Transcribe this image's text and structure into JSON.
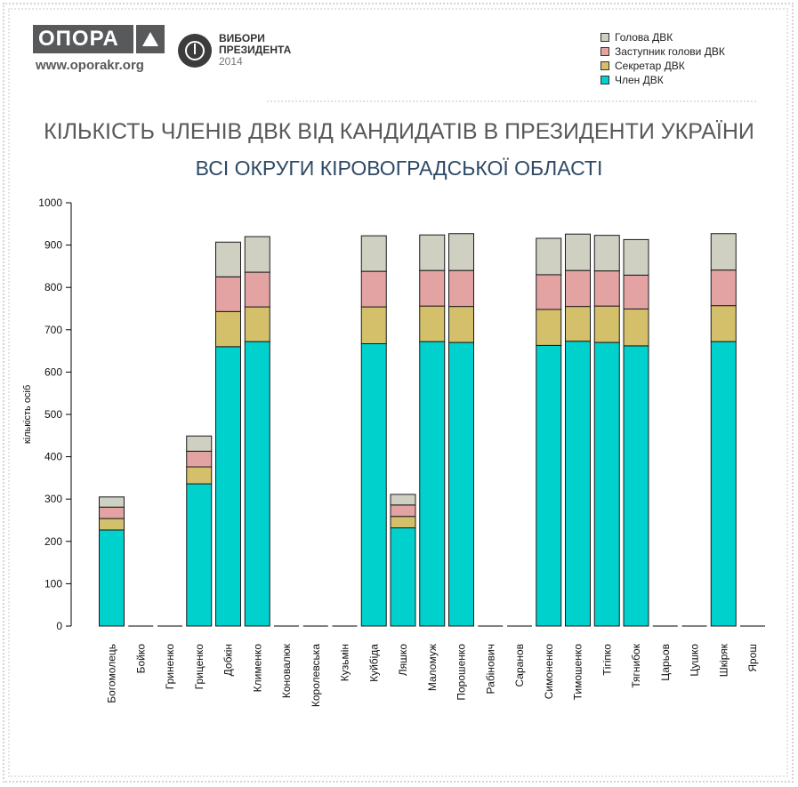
{
  "header": {
    "logo_text": "ОПОРА",
    "url": "www.oporakr.org",
    "badge": {
      "line1": "ВИБОРИ",
      "line2": "ПРЕЗИДЕНТА",
      "line3": "2014"
    }
  },
  "chart_data": {
    "type": "bar",
    "stacked": true,
    "title": "КІЛЬКІСТЬ ЧЛЕНІВ ДВК ВІД КАНДИДАТІВ В ПРЕЗИДЕНТИ УКРАЇНИ",
    "subtitle": "ВСІ ОКРУГИ КІРОВОГРАДСЬКОЇ ОБЛАСТІ",
    "xlabel": "",
    "ylabel": "кількість осіб",
    "ylim": [
      0,
      1000
    ],
    "yticks": [
      0,
      100,
      200,
      300,
      400,
      500,
      600,
      700,
      800,
      900,
      1000
    ],
    "grid": false,
    "legend_position": "top-right",
    "categories": [
      "Богомолець",
      "Бойко",
      "Гриненко",
      "Гриценко",
      "Добкін",
      "Клименко",
      "Коновалюк",
      "Королевська",
      "Кузьмін",
      "Куйбіда",
      "Ляшко",
      "Маломуж",
      "Порошенко",
      "Рабінович",
      "Саранов",
      "Симоненко",
      "Тимошенко",
      "Тігіпко",
      "Тягнибок",
      "Царьов",
      "Цушко",
      "Шкіряк",
      "Ярош"
    ],
    "series": [
      {
        "name": "Член ДВК",
        "color": "#00d1cc",
        "values": [
          227,
          0,
          0,
          336,
          660,
          672,
          0,
          0,
          0,
          667,
          232,
          672,
          670,
          0,
          0,
          663,
          673,
          670,
          662,
          0,
          0,
          672,
          0
        ]
      },
      {
        "name": "Секретар ДВК",
        "color": "#d4bf6a",
        "values": [
          27,
          0,
          0,
          40,
          83,
          82,
          0,
          0,
          0,
          87,
          27,
          84,
          85,
          0,
          0,
          85,
          82,
          86,
          87,
          0,
          0,
          85,
          0
        ]
      },
      {
        "name": "Заступник голови ДВК",
        "color": "#e4a3a3",
        "values": [
          27,
          0,
          0,
          37,
          82,
          82,
          0,
          0,
          0,
          84,
          27,
          84,
          85,
          0,
          0,
          82,
          85,
          83,
          80,
          0,
          0,
          84,
          0
        ]
      },
      {
        "name": "Голова ДВК",
        "color": "#cfcfc2",
        "values": [
          24,
          0,
          0,
          36,
          82,
          84,
          0,
          0,
          0,
          84,
          25,
          84,
          87,
          0,
          0,
          86,
          86,
          84,
          84,
          0,
          0,
          86,
          0
        ]
      }
    ]
  }
}
